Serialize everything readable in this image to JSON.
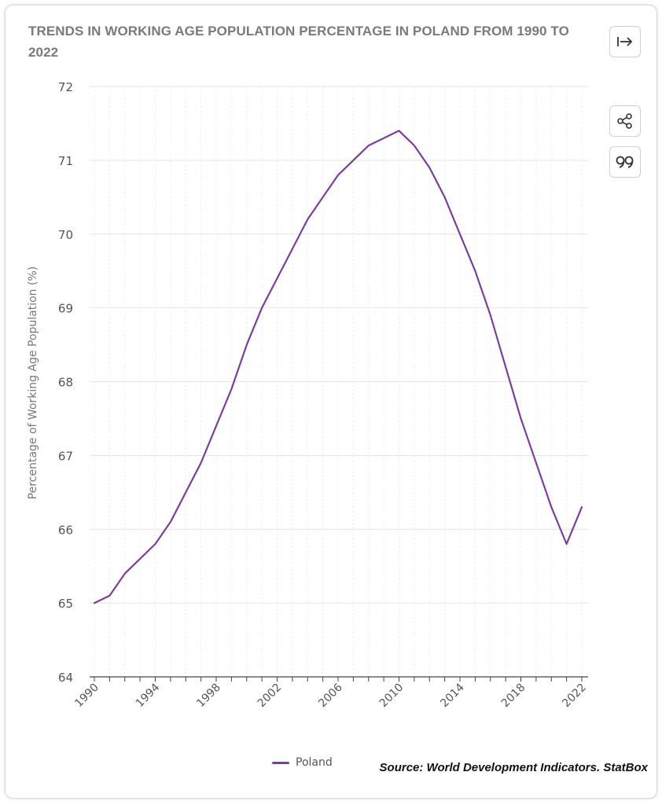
{
  "title": "TRENDS IN WORKING AGE POPULATION PERCENTAGE IN POLAND FROM 1990 TO 2022",
  "buttons": {
    "expand_icon": "arrow-right-to-bar-icon",
    "share_icon": "share-icon",
    "cite_icon": "quote-icon"
  },
  "legend": {
    "label": "Poland"
  },
  "source": "Source: World Development Indicators. StatBox",
  "colors": {
    "series": "#7b3f98",
    "grid": "#e3e3e3",
    "axis": "#444444",
    "title": "#7a7a7a"
  },
  "chart_data": {
    "type": "line",
    "title": "TRENDS IN WORKING AGE POPULATION PERCENTAGE IN POLAND FROM 1990 TO 2022",
    "xlabel": "",
    "ylabel": "Percentage of Working Age Population (%)",
    "xlim": [
      1990,
      2022
    ],
    "ylim": [
      64,
      72
    ],
    "yticks": [
      64,
      65,
      66,
      67,
      68,
      69,
      70,
      71,
      72
    ],
    "xticks": [
      1990,
      1994,
      1998,
      2002,
      2006,
      2010,
      2014,
      2018,
      2022
    ],
    "grid": "horizontal and vertical",
    "legend_position": "bottom",
    "series": [
      {
        "name": "Poland",
        "x": [
          1990,
          1991,
          1992,
          1993,
          1994,
          1995,
          1996,
          1997,
          1998,
          1999,
          2000,
          2001,
          2002,
          2003,
          2004,
          2005,
          2006,
          2007,
          2008,
          2009,
          2010,
          2011,
          2012,
          2013,
          2014,
          2015,
          2016,
          2017,
          2018,
          2019,
          2020,
          2021,
          2022
        ],
        "values": [
          65.0,
          65.1,
          65.4,
          65.6,
          65.8,
          66.1,
          66.5,
          66.9,
          67.4,
          67.9,
          68.5,
          69.0,
          69.4,
          69.8,
          70.2,
          70.5,
          70.8,
          71.0,
          71.2,
          71.3,
          71.4,
          71.2,
          70.9,
          70.5,
          70.0,
          69.5,
          68.9,
          68.2,
          67.5,
          66.9,
          66.3,
          65.8,
          66.3
        ]
      }
    ]
  }
}
